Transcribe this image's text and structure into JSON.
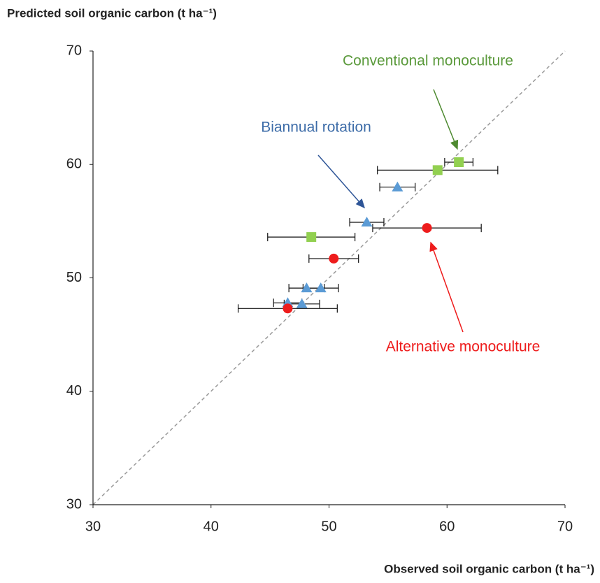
{
  "chart_data": {
    "type": "scatter",
    "y_label": "Predicted soil organic carbon (t ha⁻¹)",
    "x_label": "Observed soil organic carbon (t ha⁻¹)",
    "xlim": [
      30,
      70
    ],
    "ylim": [
      30,
      70
    ],
    "xticks": [
      30,
      40,
      50,
      60,
      70
    ],
    "yticks": [
      30,
      40,
      50,
      60,
      70
    ],
    "series": [
      {
        "name": "Conventional monoculture",
        "color": "#92d050",
        "label_color": "#5b9a3c",
        "marker": "square",
        "x": [
          61.0,
          59.2,
          48.5
        ],
        "values": [
          60.2,
          59.5,
          53.6
        ],
        "xerr": [
          1.2,
          5.1,
          3.7
        ]
      },
      {
        "name": "Biannual rotation",
        "color": "#5b9bd5",
        "label_color": "#3d6ca8",
        "marker": "triangle",
        "x": [
          55.8,
          53.2,
          48.1,
          49.3,
          46.5,
          47.7
        ],
        "values": [
          58.0,
          54.9,
          49.1,
          49.1,
          47.8,
          47.7
        ],
        "xerr": [
          1.5,
          1.45,
          1.5,
          1.5,
          1.2,
          1.5
        ]
      },
      {
        "name": "Alternative monoculture",
        "color": "#ee1c1c",
        "label_color": "#ee1c1c",
        "marker": "circle",
        "x": [
          58.3,
          50.4,
          46.5
        ],
        "values": [
          54.4,
          51.7,
          47.3
        ],
        "xerr": [
          4.6,
          2.1,
          4.2
        ]
      }
    ]
  }
}
